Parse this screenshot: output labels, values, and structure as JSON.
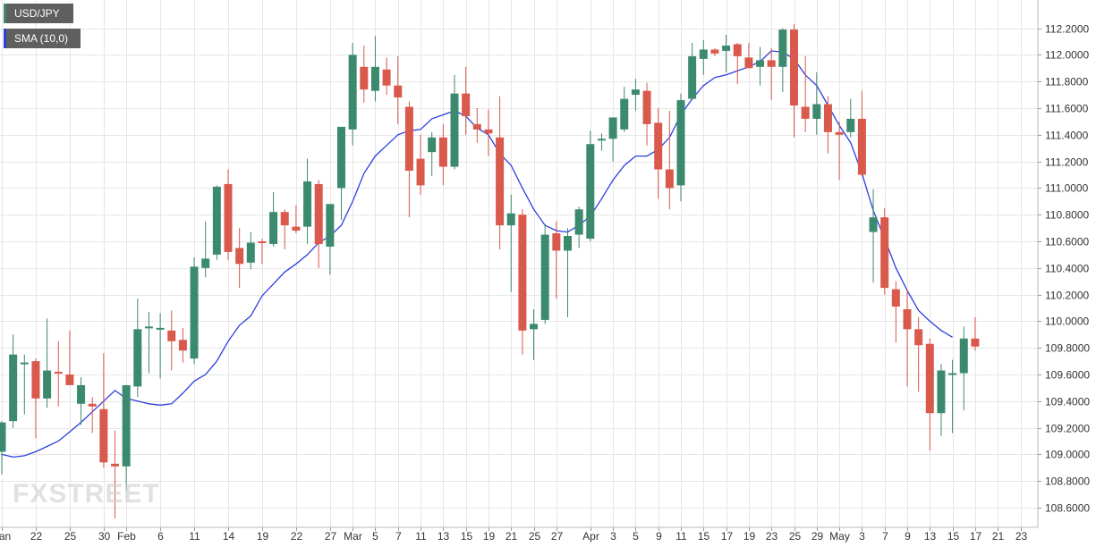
{
  "legend": {
    "price_label": "USD/JPY",
    "sma_label": "SMA (10,0)"
  },
  "watermark": {
    "text": "FXSTREET"
  },
  "colors": {
    "up": "#3c8a6e",
    "down": "#d9594c",
    "sma": "#2b3fe0",
    "grid": "#e6e6e6",
    "price_swatch": "#3c8a6e",
    "sma_swatch": "#2b3fe0"
  },
  "chart_data": {
    "type": "candlestick",
    "title": "",
    "xlabel": "",
    "ylabel": "",
    "ylim": [
      108.52,
      112.22
    ],
    "grid": true,
    "y_ticks": [
      "108.6000",
      "108.8000",
      "109.0000",
      "109.2000",
      "109.4000",
      "109.6000",
      "109.8000",
      "110.0000",
      "110.2000",
      "110.4000",
      "110.6000",
      "110.8000",
      "111.0000",
      "111.2000",
      "111.4000",
      "111.6000",
      "111.8000",
      "112.0000",
      "112.2000"
    ],
    "x_ticks": [
      {
        "label": "Jan",
        "index": 0
      },
      {
        "label": "22",
        "index": 3
      },
      {
        "label": "25",
        "index": 6
      },
      {
        "label": "30",
        "index": 9
      },
      {
        "label": "Feb",
        "index": 11
      },
      {
        "label": "6",
        "index": 14
      },
      {
        "label": "11",
        "index": 17
      },
      {
        "label": "14",
        "index": 20
      },
      {
        "label": "19",
        "index": 23
      },
      {
        "label": "22",
        "index": 26
      },
      {
        "label": "27",
        "index": 29
      },
      {
        "label": "Mar",
        "index": 31
      },
      {
        "label": "5",
        "index": 33
      },
      {
        "label": "7",
        "index": 35
      },
      {
        "label": "11",
        "index": 37
      },
      {
        "label": "13",
        "index": 39
      },
      {
        "label": "15",
        "index": 41
      },
      {
        "label": "19",
        "index": 43
      },
      {
        "label": "21",
        "index": 45
      },
      {
        "label": "25",
        "index": 47
      },
      {
        "label": "27",
        "index": 49
      },
      {
        "label": "Apr",
        "index": 52
      },
      {
        "label": "3",
        "index": 54
      },
      {
        "label": "5",
        "index": 56
      },
      {
        "label": "9",
        "index": 58
      },
      {
        "label": "11",
        "index": 60
      },
      {
        "label": "15",
        "index": 62
      },
      {
        "label": "17",
        "index": 64
      },
      {
        "label": "19",
        "index": 66
      },
      {
        "label": "23",
        "index": 68
      },
      {
        "label": "25",
        "index": 70
      },
      {
        "label": "29",
        "index": 72
      },
      {
        "label": "May",
        "index": 74
      },
      {
        "label": "3",
        "index": 76
      },
      {
        "label": "7",
        "index": 78
      },
      {
        "label": "9",
        "index": 80
      },
      {
        "label": "13",
        "index": 82
      },
      {
        "label": "15",
        "index": 84
      },
      {
        "label": "17",
        "index": 86
      },
      {
        "label": "21",
        "index": 88
      },
      {
        "label": "23",
        "index": 90
      }
    ],
    "candles": [
      {
        "o": 109.02,
        "h": 109.25,
        "l": 108.85,
        "c": 109.24
      },
      {
        "o": 109.25,
        "h": 109.9,
        "l": 109.2,
        "c": 109.75
      },
      {
        "o": 109.68,
        "h": 109.75,
        "l": 109.3,
        "c": 109.69
      },
      {
        "o": 109.7,
        "h": 109.72,
        "l": 109.12,
        "c": 109.42
      },
      {
        "o": 109.42,
        "h": 110.02,
        "l": 109.35,
        "c": 109.63
      },
      {
        "o": 109.62,
        "h": 109.85,
        "l": 109.36,
        "c": 109.61
      },
      {
        "o": 109.6,
        "h": 109.93,
        "l": 109.52,
        "c": 109.52
      },
      {
        "o": 109.38,
        "h": 109.58,
        "l": 109.22,
        "c": 109.52
      },
      {
        "o": 109.38,
        "h": 109.43,
        "l": 109.16,
        "c": 109.36
      },
      {
        "o": 109.34,
        "h": 109.76,
        "l": 108.9,
        "c": 108.94
      },
      {
        "o": 108.93,
        "h": 109.18,
        "l": 108.52,
        "c": 108.91
      },
      {
        "o": 108.91,
        "h": 109.52,
        "l": 108.73,
        "c": 109.52
      },
      {
        "o": 109.51,
        "h": 110.17,
        "l": 109.43,
        "c": 109.94
      },
      {
        "o": 109.95,
        "h": 110.07,
        "l": 109.61,
        "c": 109.96
      },
      {
        "o": 109.95,
        "h": 110.06,
        "l": 109.57,
        "c": 109.95
      },
      {
        "o": 109.93,
        "h": 110.08,
        "l": 109.63,
        "c": 109.85
      },
      {
        "o": 109.86,
        "h": 109.95,
        "l": 109.69,
        "c": 109.78
      },
      {
        "o": 109.72,
        "h": 110.48,
        "l": 109.68,
        "c": 110.41
      },
      {
        "o": 110.4,
        "h": 110.75,
        "l": 110.33,
        "c": 110.47
      },
      {
        "o": 110.5,
        "h": 111.02,
        "l": 110.46,
        "c": 111.01
      },
      {
        "o": 111.03,
        "h": 111.14,
        "l": 110.46,
        "c": 110.52
      },
      {
        "o": 110.55,
        "h": 110.7,
        "l": 110.25,
        "c": 110.43
      },
      {
        "o": 110.44,
        "h": 110.67,
        "l": 110.39,
        "c": 110.59
      },
      {
        "o": 110.6,
        "h": 110.62,
        "l": 110.43,
        "c": 110.59
      },
      {
        "o": 110.58,
        "h": 110.97,
        "l": 110.56,
        "c": 110.82
      },
      {
        "o": 110.82,
        "h": 110.84,
        "l": 110.54,
        "c": 110.72
      },
      {
        "o": 110.71,
        "h": 110.87,
        "l": 110.66,
        "c": 110.68
      },
      {
        "o": 110.71,
        "h": 111.22,
        "l": 110.58,
        "c": 111.05
      },
      {
        "o": 111.03,
        "h": 111.06,
        "l": 110.4,
        "c": 110.58
      },
      {
        "o": 110.56,
        "h": 110.88,
        "l": 110.35,
        "c": 110.88
      },
      {
        "o": 111.0,
        "h": 111.44,
        "l": 110.76,
        "c": 111.46
      },
      {
        "o": 111.44,
        "h": 112.09,
        "l": 111.32,
        "c": 112.0
      },
      {
        "o": 111.91,
        "h": 112.07,
        "l": 111.64,
        "c": 111.74
      },
      {
        "o": 111.73,
        "h": 112.14,
        "l": 111.65,
        "c": 111.91
      },
      {
        "o": 111.89,
        "h": 111.98,
        "l": 111.7,
        "c": 111.77
      },
      {
        "o": 111.77,
        "h": 111.99,
        "l": 111.48,
        "c": 111.68
      },
      {
        "o": 111.61,
        "h": 111.65,
        "l": 110.78,
        "c": 111.13
      },
      {
        "o": 111.22,
        "h": 111.4,
        "l": 110.95,
        "c": 111.02
      },
      {
        "o": 111.27,
        "h": 111.42,
        "l": 111.09,
        "c": 111.38
      },
      {
        "o": 111.38,
        "h": 111.48,
        "l": 111.02,
        "c": 111.16
      },
      {
        "o": 111.16,
        "h": 111.85,
        "l": 111.14,
        "c": 111.71
      },
      {
        "o": 111.71,
        "h": 111.91,
        "l": 111.4,
        "c": 111.54
      },
      {
        "o": 111.48,
        "h": 111.6,
        "l": 111.34,
        "c": 111.44
      },
      {
        "o": 111.44,
        "h": 111.59,
        "l": 111.24,
        "c": 111.41
      },
      {
        "o": 111.38,
        "h": 111.69,
        "l": 110.54,
        "c": 110.72
      },
      {
        "o": 110.72,
        "h": 110.95,
        "l": 110.22,
        "c": 110.81
      },
      {
        "o": 110.8,
        "h": 110.84,
        "l": 109.75,
        "c": 109.93
      },
      {
        "o": 109.94,
        "h": 110.09,
        "l": 109.71,
        "c": 109.98
      },
      {
        "o": 110.01,
        "h": 110.73,
        "l": 109.98,
        "c": 110.65
      },
      {
        "o": 110.66,
        "h": 110.75,
        "l": 110.17,
        "c": 110.53
      },
      {
        "o": 110.53,
        "h": 110.7,
        "l": 110.03,
        "c": 110.64
      },
      {
        "o": 110.65,
        "h": 110.86,
        "l": 110.55,
        "c": 110.84
      },
      {
        "o": 110.62,
        "h": 111.43,
        "l": 110.6,
        "c": 111.33
      },
      {
        "o": 111.36,
        "h": 111.41,
        "l": 111.28,
        "c": 111.37
      },
      {
        "o": 111.37,
        "h": 111.52,
        "l": 111.2,
        "c": 111.53
      },
      {
        "o": 111.44,
        "h": 111.76,
        "l": 111.42,
        "c": 111.67
      },
      {
        "o": 111.7,
        "h": 111.82,
        "l": 111.58,
        "c": 111.74
      },
      {
        "o": 111.73,
        "h": 111.79,
        "l": 111.32,
        "c": 111.48
      },
      {
        "o": 111.49,
        "h": 111.6,
        "l": 110.92,
        "c": 111.14
      },
      {
        "o": 111.14,
        "h": 111.58,
        "l": 110.84,
        "c": 111.0
      },
      {
        "o": 111.02,
        "h": 111.71,
        "l": 110.9,
        "c": 111.66
      },
      {
        "o": 111.67,
        "h": 112.09,
        "l": 111.66,
        "c": 111.99
      },
      {
        "o": 111.97,
        "h": 112.11,
        "l": 111.85,
        "c": 112.04
      },
      {
        "o": 112.04,
        "h": 112.05,
        "l": 111.99,
        "c": 112.01
      },
      {
        "o": 112.03,
        "h": 112.15,
        "l": 111.87,
        "c": 112.07
      },
      {
        "o": 112.08,
        "h": 112.09,
        "l": 111.78,
        "c": 111.99
      },
      {
        "o": 111.98,
        "h": 112.09,
        "l": 111.91,
        "c": 111.9
      },
      {
        "o": 111.91,
        "h": 112.06,
        "l": 111.77,
        "c": 111.96
      },
      {
        "o": 111.96,
        "h": 112.05,
        "l": 111.66,
        "c": 111.91
      },
      {
        "o": 111.91,
        "h": 112.2,
        "l": 111.72,
        "c": 112.19
      },
      {
        "o": 112.19,
        "h": 112.23,
        "l": 111.38,
        "c": 111.62
      },
      {
        "o": 111.61,
        "h": 111.99,
        "l": 111.42,
        "c": 111.52
      },
      {
        "o": 111.52,
        "h": 111.87,
        "l": 111.4,
        "c": 111.63
      },
      {
        "o": 111.63,
        "h": 111.69,
        "l": 111.26,
        "c": 111.42
      },
      {
        "o": 111.42,
        "h": 111.5,
        "l": 111.06,
        "c": 111.4
      },
      {
        "o": 111.42,
        "h": 111.67,
        "l": 111.38,
        "c": 111.52
      },
      {
        "o": 111.52,
        "h": 111.73,
        "l": 111.09,
        "c": 111.1
      },
      {
        "o": 110.67,
        "h": 110.99,
        "l": 110.29,
        "c": 110.78
      },
      {
        "o": 110.78,
        "h": 110.85,
        "l": 110.2,
        "c": 110.25
      },
      {
        "o": 110.24,
        "h": 110.3,
        "l": 109.84,
        "c": 110.11
      },
      {
        "o": 110.09,
        "h": 110.24,
        "l": 109.51,
        "c": 109.94
      },
      {
        "o": 109.94,
        "h": 110.03,
        "l": 109.47,
        "c": 109.82
      },
      {
        "o": 109.83,
        "h": 109.87,
        "l": 109.03,
        "c": 109.31
      },
      {
        "o": 109.31,
        "h": 109.68,
        "l": 109.14,
        "c": 109.63
      },
      {
        "o": 109.61,
        "h": 109.71,
        "l": 109.16,
        "c": 109.61
      },
      {
        "o": 109.61,
        "h": 109.96,
        "l": 109.33,
        "c": 109.87
      },
      {
        "o": 109.87,
        "h": 110.03,
        "l": 109.78,
        "c": 109.81
      }
    ],
    "sma": [
      109.0,
      108.98,
      108.99,
      109.02,
      109.06,
      109.1,
      109.17,
      109.24,
      109.32,
      109.4,
      109.48,
      109.42,
      109.4,
      109.38,
      109.37,
      109.38,
      109.46,
      109.55,
      109.6,
      109.7,
      109.85,
      109.97,
      110.04,
      110.19,
      110.28,
      110.37,
      110.43,
      110.5,
      110.59,
      110.64,
      110.72,
      110.9,
      111.11,
      111.24,
      111.32,
      111.4,
      111.43,
      111.44,
      111.52,
      111.55,
      111.58,
      111.54,
      111.45,
      111.4,
      111.26,
      111.17,
      111.0,
      110.84,
      110.72,
      110.68,
      110.67,
      110.72,
      110.79,
      110.92,
      111.06,
      111.17,
      111.24,
      111.24,
      111.29,
      111.38,
      111.55,
      111.67,
      111.77,
      111.83,
      111.85,
      111.88,
      111.91,
      111.95,
      112.03,
      112.02,
      111.97,
      111.85,
      111.77,
      111.62,
      111.47,
      111.34,
      111.11,
      110.83,
      110.62,
      110.4,
      110.23,
      110.08,
      110.0,
      109.93,
      109.88
    ]
  }
}
